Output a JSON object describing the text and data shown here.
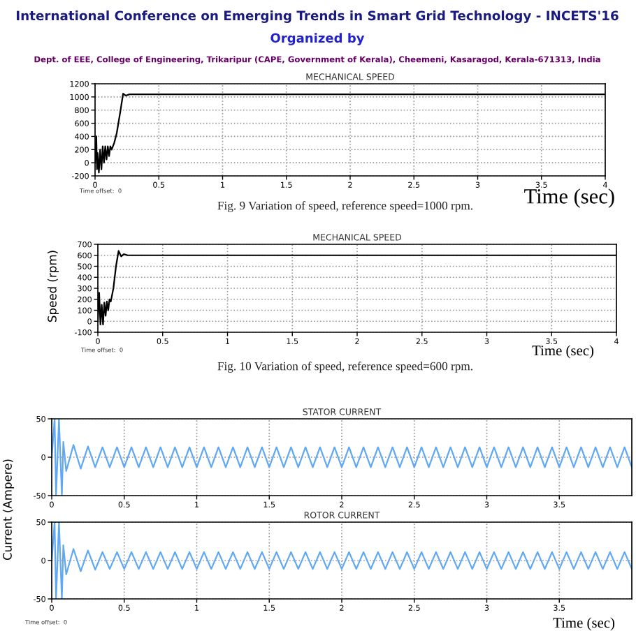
{
  "chart_data": [
    {
      "type": "line",
      "title": "MECHANICAL SPEED",
      "xlabel": "Time (sec)",
      "annotations": [
        "International Conference on Emerging Trends in Smart Grid Technology - INCETS'16",
        "Organized by",
        "Dept. of EEE, College of Engineering, Trikaripur (CAPE, Government of Kerala), Cheemeni, Kasaragod, Kerala-671313, India",
        "Time offset:  0",
        "Fig. 9 Variation of speed, reference speed=1000 rpm."
      ],
      "x": [
        0,
        0.01,
        0.015,
        0.02,
        0.03,
        0.04,
        0.05,
        0.06,
        0.07,
        0.08,
        0.09,
        0.1,
        0.11,
        0.12,
        0.13,
        0.15,
        0.17,
        0.2,
        0.22,
        0.24,
        0.27,
        0.3,
        4
      ],
      "series": [
        {
          "color": "#000000",
          "values": [
            0,
            400,
            -100,
            150,
            -150,
            200,
            -100,
            250,
            0,
            250,
            50,
            250,
            100,
            250,
            200,
            300,
            450,
            800,
            1050,
            1020,
            1040,
            1040,
            1040
          ]
        }
      ],
      "xlim": [
        0,
        4
      ],
      "xticks": [
        0,
        0.5,
        1,
        1.5,
        2,
        2.5,
        3,
        3.5,
        4
      ],
      "ylim": [
        -200,
        1200
      ],
      "yticks": [
        -200,
        0,
        200,
        400,
        600,
        800,
        1000,
        1200
      ],
      "grid": true
    },
    {
      "type": "line",
      "title": "MECHANICAL SPEED",
      "xlabel": "Time (sec)",
      "ylabel": "Speed (rpm)",
      "annotations": [
        "Time offset:  0",
        "Fig. 10 Variation of speed, reference speed=600 rpm."
      ],
      "x": [
        0,
        0.01,
        0.02,
        0.03,
        0.04,
        0.05,
        0.06,
        0.07,
        0.08,
        0.09,
        0.1,
        0.12,
        0.14,
        0.16,
        0.18,
        0.2,
        0.23,
        4
      ],
      "series": [
        {
          "color": "#000000",
          "values": [
            0,
            260,
            -30,
            150,
            -30,
            170,
            50,
            180,
            100,
            200,
            180,
            300,
            500,
            640,
            590,
            610,
            600,
            600
          ]
        }
      ],
      "xlim": [
        0,
        4
      ],
      "xticks": [
        0,
        0.5,
        1,
        1.5,
        2,
        2.5,
        3,
        3.5,
        4
      ],
      "ylim": [
        -100,
        700
      ],
      "yticks": [
        -100,
        0,
        100,
        200,
        300,
        400,
        500,
        600,
        700
      ],
      "grid": true
    },
    {
      "type": "line",
      "title": "STATOR CURRENT",
      "ylabel": "Current (Ampere)",
      "x": [
        0,
        0.02,
        0.03,
        0.05,
        0.07,
        0.08,
        0.1,
        0.15,
        0.2,
        0.25,
        0.3,
        0.35,
        0.4,
        0.45,
        0.5,
        0.55,
        0.6,
        0.65,
        0.7,
        0.75,
        0.8,
        0.85,
        0.9,
        0.95,
        1,
        1.05,
        1.1,
        1.15,
        1.2,
        1.25,
        1.3,
        1.35,
        1.4,
        1.45,
        1.5,
        1.55,
        1.6,
        1.65,
        1.7,
        1.75,
        1.8,
        1.85,
        1.9,
        1.95,
        2,
        2.05,
        2.1,
        2.15,
        2.2,
        2.25,
        2.3,
        2.35,
        2.4,
        2.45,
        2.5,
        2.55,
        2.6,
        2.65,
        2.7,
        2.75,
        2.8,
        2.85,
        2.9,
        2.95,
        3,
        3.05,
        3.1,
        3.15,
        3.2,
        3.25,
        3.3,
        3.35,
        3.4,
        3.45,
        3.5,
        3.55,
        3.6,
        3.65,
        3.7,
        3.75,
        3.8,
        3.85,
        3.9,
        3.95,
        4
      ],
      "series": [
        {
          "color": "#5fa8f5",
          "values": [
            0,
            50,
            -50,
            50,
            -50,
            20,
            -18,
            16,
            -15,
            14,
            -13,
            13,
            -13,
            13,
            -13,
            13,
            -13,
            13,
            -13,
            13,
            -13,
            13,
            -13,
            13,
            -13,
            13,
            -13,
            13,
            -13,
            13,
            -13,
            13,
            -13,
            13,
            -13,
            13,
            -13,
            13,
            -13,
            13,
            -13,
            13,
            -13,
            13,
            -13,
            13,
            -13,
            13,
            -13,
            13,
            -13,
            13,
            -13,
            13,
            -13,
            13,
            -13,
            13,
            -13,
            13,
            -13,
            13,
            -13,
            13,
            -13,
            13,
            -13,
            13,
            -13,
            13,
            -13,
            13,
            -13,
            13,
            -13,
            13,
            -13,
            13,
            -13,
            13,
            -13,
            13,
            -13,
            13,
            -13
          ]
        }
      ],
      "xlim": [
        0,
        4
      ],
      "xticks": [
        0,
        0.5,
        1,
        1.5,
        2,
        2.5,
        3,
        3.5
      ],
      "ylim": [
        -50,
        50
      ],
      "yticks": [
        -50,
        0,
        50
      ],
      "grid": true
    },
    {
      "type": "line",
      "title": "ROTOR CURRENT",
      "xlabel": "Time (sec)",
      "annotations": [
        "Time offset:  0"
      ],
      "x": [
        0,
        0.02,
        0.03,
        0.05,
        0.07,
        0.08,
        0.1,
        0.15,
        0.2,
        0.25,
        0.3,
        0.35,
        0.4,
        0.45,
        0.5,
        0.55,
        0.6,
        0.65,
        0.7,
        0.75,
        0.8,
        0.85,
        0.9,
        0.95,
        1,
        1.05,
        1.1,
        1.15,
        1.2,
        1.25,
        1.3,
        1.35,
        1.4,
        1.45,
        1.5,
        1.55,
        1.6,
        1.65,
        1.7,
        1.75,
        1.8,
        1.85,
        1.9,
        1.95,
        2,
        2.05,
        2.1,
        2.15,
        2.2,
        2.25,
        2.3,
        2.35,
        2.4,
        2.45,
        2.5,
        2.55,
        2.6,
        2.65,
        2.7,
        2.75,
        2.8,
        2.85,
        2.9,
        2.95,
        3,
        3.05,
        3.1,
        3.15,
        3.2,
        3.25,
        3.3,
        3.35,
        3.4,
        3.45,
        3.5,
        3.55,
        3.6,
        3.65,
        3.7,
        3.75,
        3.8,
        3.85,
        3.9,
        3.95,
        4
      ],
      "series": [
        {
          "color": "#5fa8f5",
          "values": [
            0,
            50,
            -50,
            50,
            -50,
            20,
            -18,
            15,
            -14,
            13,
            -12,
            11,
            -11,
            11,
            -11,
            11,
            -11,
            11,
            -11,
            11,
            -11,
            11,
            -11,
            11,
            -11,
            11,
            -11,
            11,
            -11,
            11,
            -11,
            11,
            -11,
            11,
            -11,
            11,
            -11,
            11,
            -11,
            11,
            -11,
            11,
            -11,
            11,
            -11,
            11,
            -11,
            11,
            -11,
            11,
            -11,
            11,
            -11,
            11,
            -11,
            11,
            -11,
            11,
            -11,
            11,
            -11,
            11,
            -11,
            11,
            -11,
            11,
            -11,
            11,
            -11,
            11,
            -11,
            11,
            -11,
            11,
            -11,
            11,
            -11,
            11,
            -11,
            11,
            -11,
            11,
            -11,
            11,
            -11
          ]
        }
      ],
      "xlim": [
        0,
        4
      ],
      "xticks": [
        0,
        0.5,
        1,
        1.5,
        2,
        2.5,
        3,
        3.5
      ],
      "ylim": [
        -50,
        50
      ],
      "yticks": [
        -50,
        0,
        50
      ],
      "grid": true
    }
  ]
}
